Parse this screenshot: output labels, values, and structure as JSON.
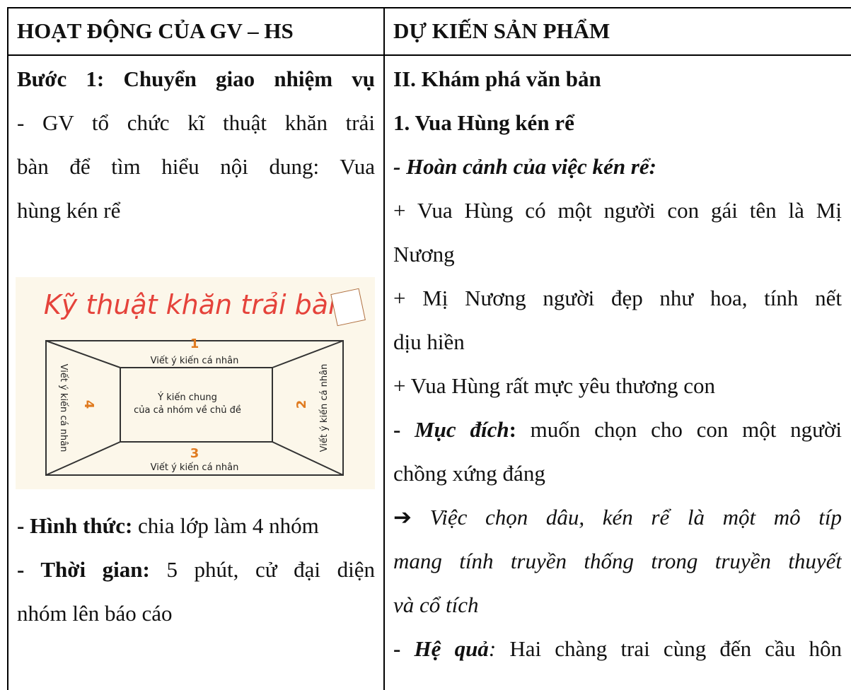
{
  "table": {
    "header": [
      "HOẠT ĐỘNG CỦA GV – HS",
      "DỰ KIẾN SẢN PHẨM"
    ],
    "left": [
      [
        "Bước 1: Chuyển giao nhiệm vụ"
      ],
      [
        "- GV tổ chức kĩ thuật khăn trải"
      ],
      [
        "bàn để tìm hiểu nội dung: Vua"
      ],
      [
        "hùng kén rể"
      ],
      [
        "- Hình thức:",
        " chia lớp làm 4 nhóm"
      ],
      [
        "- Thời gian:",
        " 5 phút, cử đại diện"
      ],
      [
        "nhóm lên báo cáo"
      ]
    ],
    "right": [
      [
        "II. Khám phá văn bản"
      ],
      [
        "1. Vua Hùng kén rể"
      ],
      [
        "- Hoàn cảnh của việc kén rể:"
      ],
      [
        "+ Vua Hùng có một người con gái tên là Mị"
      ],
      [
        "Nương"
      ],
      [
        "+ Mị Nương người đẹp như hoa, tính nết"
      ],
      [
        "dịu hiền"
      ],
      [
        "+ Vua Hùng rất mực yêu thương con"
      ],
      [
        "- ",
        "Mục đích",
        ":",
        " muốn chọn cho con một người"
      ],
      [
        "chồng xứng đáng"
      ],
      [
        "➔ ",
        "Việc chọn dâu, kén rể là một mô típ"
      ],
      [
        "mang tính truyền thống trong truyền thuyết"
      ],
      [
        "và cổ tích"
      ],
      [
        "- ",
        "Hệ quả",
        ":",
        " Hai chàng trai cùng đến cầu hôn"
      ]
    ]
  },
  "image": {
    "title": "Kỹ thuật khăn trải bàn",
    "numbers": [
      "1",
      "2",
      "3",
      "4"
    ],
    "side_text": "Viết ý kiến cá nhân",
    "center": [
      "Ý kiến chung",
      "của cả nhóm về chủ đề"
    ]
  }
}
